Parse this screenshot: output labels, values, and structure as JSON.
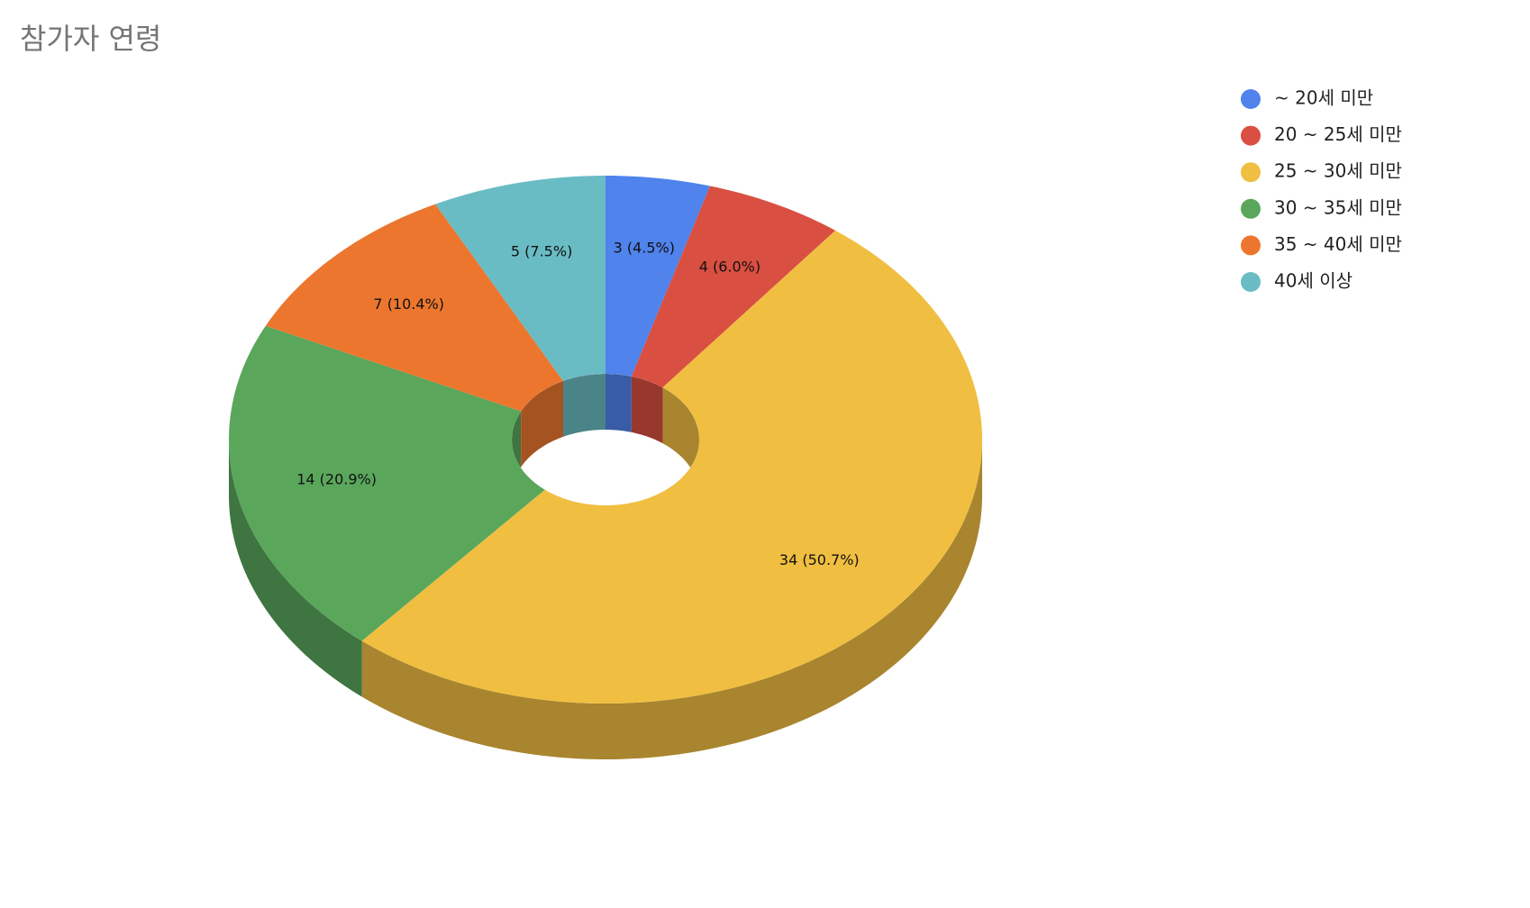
{
  "chart_data": {
    "type": "pie",
    "style": "3d-donut",
    "title": "참가자 연령",
    "categories": [
      "~ 20세 미만",
      "20 ~ 25세 미만",
      "25 ~ 30세 미만",
      "30 ~ 35세 미만",
      "35 ~ 40세 미만",
      "40세 이상"
    ],
    "values": [
      3,
      4,
      34,
      14,
      7,
      5
    ],
    "value_labels": [
      "3 (4.5%)",
      "4 (6.0%)",
      "34 (50.7%)",
      "14 (20.9%)",
      "7 (10.4%)",
      "5 (7.5%)"
    ],
    "colors": [
      "#5083ec",
      "#d94f41",
      "#f0be41",
      "#5aa75b",
      "#ec762e",
      "#6abcc4"
    ],
    "legend": "right"
  }
}
